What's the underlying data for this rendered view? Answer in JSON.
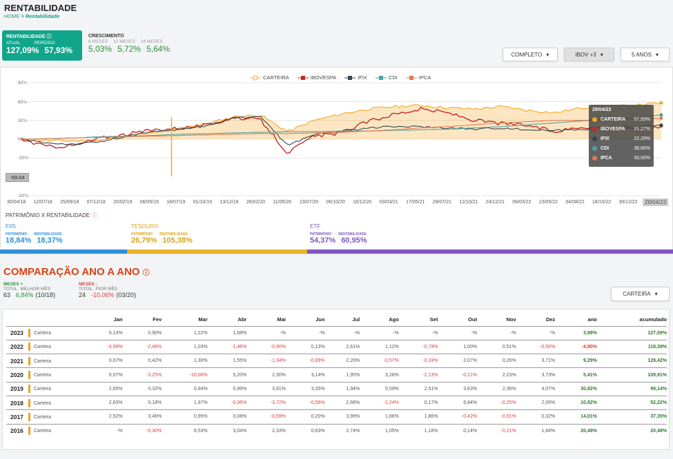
{
  "header": {
    "title": "RENTABILIDADE",
    "crumb_home": "HOME",
    "crumb_sep": ">",
    "crumb_current": "Rentabilidade"
  },
  "rentab": {
    "title": "RENTABILIDADE",
    "icon": "info-icon",
    "lbl_atual": "ATUAL",
    "lbl_periodo": "PERÍODO",
    "atual": "127,09%",
    "periodo": "57,93%"
  },
  "crescimento": {
    "title": "CRESCIMENTO",
    "l6": "6 MESES",
    "l12": "12 MESES",
    "l24": "24 MESES",
    "v6": "5,03%",
    "v12": "5,72%",
    "v24": "5,64%"
  },
  "dropdowns": {
    "completo": "COMPLETO",
    "ibov": "IBOV +3",
    "anos": "5 ANOS"
  },
  "legend": [
    "CARTEIRA",
    "IBOVESPA",
    "IFIX",
    "CDI",
    "IPCA"
  ],
  "colors": {
    "carteira": "#f5a623",
    "ibovespa": "#c62828",
    "ifix": "#37474f",
    "cdi": "#4aa3a3",
    "ipca": "#e07b53",
    "green": "#11a58c"
  },
  "chart_data": {
    "type": "line",
    "x_ticks": [
      "30/04/18",
      "12/07/18",
      "25/09/18",
      "07/12/18",
      "20/02/19",
      "06/05/19",
      "18/07/19",
      "01/10/19",
      "13/12/19",
      "26/02/20",
      "11/05/20",
      "23/07/20",
      "06/10/20",
      "18/12/20",
      "03/03/21",
      "17/05/21",
      "29/07/21",
      "12/10/21",
      "24/12/21",
      "09/03/22",
      "23/05/22",
      "04/08/22",
      "18/10/22",
      "30/12/22",
      "28/04/23"
    ],
    "y_ticks": [
      "90%",
      "60%",
      "30%",
      "0%",
      "-30%",
      "-90%"
    ],
    "ylim": [
      -90,
      90
    ],
    "marker_value": "-59.04",
    "series": [
      {
        "name": "CARTEIRA",
        "values": [
          0,
          -2,
          -3,
          -2,
          5,
          10,
          18,
          25,
          36,
          38,
          12,
          30,
          40,
          48,
          52,
          54,
          50,
          48,
          52,
          46,
          42,
          50,
          52,
          54,
          57.93
        ]
      },
      {
        "name": "IBOVESPA",
        "values": [
          0,
          -12,
          -10,
          2,
          8,
          15,
          18,
          22,
          35,
          30,
          -22,
          5,
          10,
          28,
          40,
          48,
          42,
          30,
          25,
          22,
          12,
          20,
          18,
          15,
          21.27
        ]
      },
      {
        "name": "IFIX",
        "values": [
          0,
          -6,
          -8,
          -4,
          5,
          12,
          16,
          22,
          34,
          36,
          -10,
          8,
          12,
          18,
          20,
          20,
          18,
          16,
          18,
          15,
          14,
          16,
          18,
          20,
          22.29
        ]
      },
      {
        "name": "CDI",
        "values": [
          0,
          1,
          2,
          4,
          5,
          6,
          8,
          9,
          10,
          11,
          12,
          12,
          13,
          13,
          14,
          15,
          16,
          18,
          20,
          23,
          26,
          29,
          32,
          35,
          38.66
        ]
      },
      {
        "name": "IPCA",
        "values": [
          0,
          1,
          2,
          3,
          4,
          5,
          6,
          7,
          8,
          9,
          9,
          10,
          11,
          13,
          15,
          18,
          20,
          23,
          26,
          28,
          30,
          30,
          31,
          32,
          33.5
        ]
      }
    ]
  },
  "tooltip": {
    "date": "28/04/23",
    "rows": [
      {
        "name": "CARTEIRA",
        "value": "57,93%"
      },
      {
        "name": "IBOVESPA",
        "value": "21,27%"
      },
      {
        "name": "IFIX",
        "value": "22,29%"
      },
      {
        "name": "CDI",
        "value": "38,66%"
      },
      {
        "name": "IPCA",
        "value": "33,50%"
      }
    ]
  },
  "patrimonio": {
    "title": "PATRIMÔNIO X RENTABILIDADE",
    "icon": "info-icon",
    "lbl_pat": "PATRIMÔNIO",
    "lbl_rent": "RENTABILIDADE",
    "cats": [
      {
        "name": "FIIS",
        "pat": "18,84%",
        "rent": "18,37%",
        "color": "#2f8fd8"
      },
      {
        "name": "TESOURO",
        "pat": "26,79%",
        "rent": "105,38%",
        "color": "#e7b529"
      },
      {
        "name": "ETF",
        "pat": "54,37%",
        "rent": "60,95%",
        "color": "#7e57c2"
      }
    ]
  },
  "comparacao": {
    "title": "COMPARAÇÃO ANO A ANO",
    "icon": "info-icon",
    "mplus": "MESES +",
    "total": "TOTAL",
    "melhor": "MELHOR MÊS",
    "mplus_total": "63",
    "melhor_val": "6,84%",
    "melhor_ref": "(10/18)",
    "mminus": "MESES -",
    "pior": "PIOR MÊS",
    "mminus_total": "24",
    "pior_val": "-10,06%",
    "pior_ref": "(03/20)",
    "dropdown": "CARTEIRA"
  },
  "table": {
    "headers": [
      "Jan",
      "Fev",
      "Mar",
      "Abr",
      "Mai",
      "Jun",
      "Jul",
      "Ago",
      "Set",
      "Out",
      "Nov",
      "Dez",
      "ano",
      "acumulado"
    ],
    "rows": [
      {
        "year": "2023",
        "name": "Carteira",
        "vals": [
          "0,13%",
          "0,90%",
          "1,22%",
          "1,68%",
          "-%",
          "-%",
          "-%",
          "-%",
          "-%",
          "-%",
          "-%",
          "-%"
        ],
        "ano": "3,98%",
        "acc": "127,09%"
      },
      {
        "year": "2022",
        "name": "Carteira",
        "vals": [
          "-4,99%",
          "-2,46%",
          "1,03%",
          "-1,46%",
          "-0,90%",
          "0,13%",
          "2,61%",
          "1,12%",
          "-0,79%",
          "1,00%",
          "0,51%",
          "-0,50%"
        ],
        "ano": "-4,80%",
        "acc": "118,39%"
      },
      {
        "year": "2021",
        "name": "Carteira",
        "vals": [
          "0,67%",
          "0,42%",
          "1,30%",
          "1,55%",
          "-1,34%",
          "-0,89%",
          "2,20%",
          "-0,57%",
          "-0,33%",
          "2,07%",
          "0,26%",
          "3,71%"
        ],
        "ano": "9,29%",
        "acc": "129,42%"
      },
      {
        "year": "2020",
        "name": "Carteira",
        "vals": [
          "0,07%",
          "-3,25%",
          "-10,06%",
          "5,20%",
          "2,30%",
          "3,14%",
          "1,95%",
          "3,28%",
          "-2,13%",
          "-0,21%",
          "2,23%",
          "3,73%"
        ],
        "ano": "5,41%",
        "acc": "109,91%"
      },
      {
        "year": "2019",
        "name": "Carteira",
        "vals": [
          "2,65%",
          "0,32%",
          "0,94%",
          "0,99%",
          "3,91%",
          "3,35%",
          "1,94%",
          "0,59%",
          "2,51%",
          "3,63%",
          "2,36%",
          "4,07%"
        ],
        "ano": "30,82%",
        "acc": "99,14%"
      },
      {
        "year": "2018",
        "name": "Carteira",
        "vals": [
          "2,63%",
          "0,18%",
          "1,97%",
          "-0,06%",
          "-3,72%",
          "-0,56%",
          "2,66%",
          "-1,24%",
          "0,17%",
          "6,84%",
          "-0,25%",
          "2,06%"
        ],
        "ano": "10,82%",
        "acc": "52,22%"
      },
      {
        "year": "2017",
        "name": "Carteira",
        "vals": [
          "2,52%",
          "3,46%",
          "0,95%",
          "0,08%",
          "-0,59%",
          "0,20%",
          "3,99%",
          "1,86%",
          "1,86%",
          "-0,42%",
          "-0,91%",
          "0,32%"
        ],
        "ano": "14,01%",
        "acc": "37,35%"
      },
      {
        "year": "2016",
        "name": "Carteira",
        "vals": [
          "-%",
          "-0,30%",
          "6,53%",
          "3,04%",
          "2,33%",
          "0,63%",
          "2,74%",
          "1,05%",
          "1,18%",
          "0,14%",
          "-0,21%",
          "1,84%"
        ],
        "ano": "20,48%",
        "acc": "20,48%"
      }
    ]
  }
}
